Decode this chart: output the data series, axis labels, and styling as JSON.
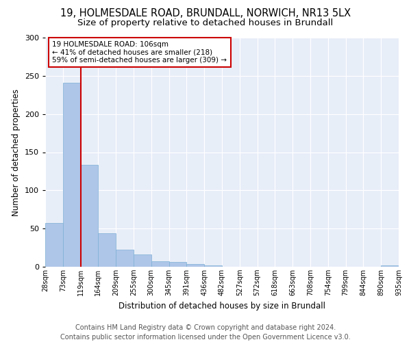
{
  "title1": "19, HOLMESDALE ROAD, BRUNDALL, NORWICH, NR13 5LX",
  "title2": "Size of property relative to detached houses in Brundall",
  "xlabel": "Distribution of detached houses by size in Brundall",
  "ylabel": "Number of detached properties",
  "bar_values": [
    57,
    241,
    133,
    44,
    22,
    16,
    7,
    6,
    4,
    2,
    0,
    0,
    0,
    0,
    0,
    0,
    0,
    0,
    0,
    2
  ],
  "bin_labels": [
    "28sqm",
    "73sqm",
    "119sqm",
    "164sqm",
    "209sqm",
    "255sqm",
    "300sqm",
    "345sqm",
    "391sqm",
    "436sqm",
    "482sqm",
    "527sqm",
    "572sqm",
    "618sqm",
    "663sqm",
    "708sqm",
    "754sqm",
    "799sqm",
    "844sqm",
    "890sqm",
    "935sqm"
  ],
  "bar_color": "#aec6e8",
  "bar_edge_color": "#7bafd4",
  "vline_color": "#cc0000",
  "annotation_text": "19 HOLMESDALE ROAD: 106sqm\n← 41% of detached houses are smaller (218)\n59% of semi-detached houses are larger (309) →",
  "annotation_box_facecolor": "#ffffff",
  "annotation_box_edgecolor": "#cc0000",
  "ylim": [
    0,
    300
  ],
  "yticks": [
    0,
    50,
    100,
    150,
    200,
    250,
    300
  ],
  "background_color": "#e8eef8",
  "grid_color": "#ffffff",
  "footer": "Contains HM Land Registry data © Crown copyright and database right 2024.\nContains public sector information licensed under the Open Government Licence v3.0.",
  "title1_fontsize": 10.5,
  "title2_fontsize": 9.5,
  "tick_fontsize": 7,
  "ylabel_fontsize": 8.5,
  "xlabel_fontsize": 8.5,
  "annotation_fontsize": 7.5,
  "footer_fontsize": 7
}
